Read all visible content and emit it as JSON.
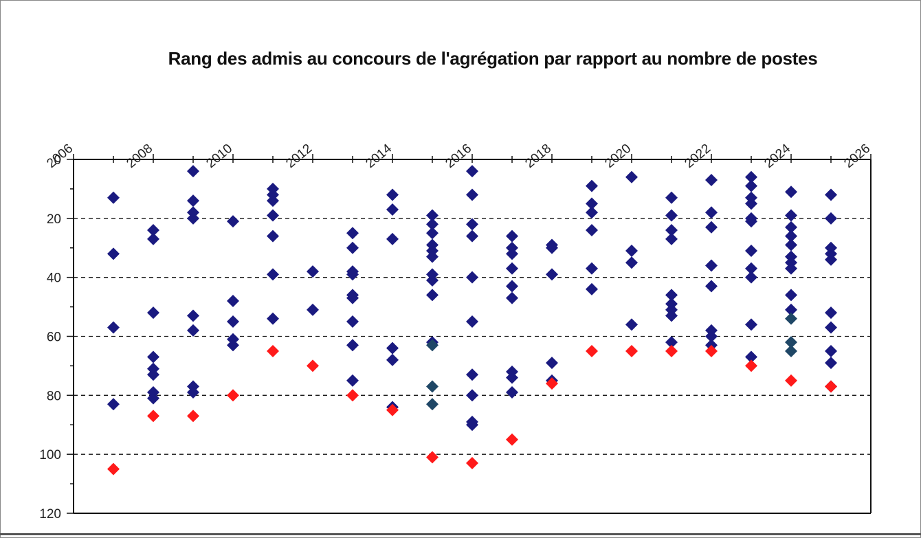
{
  "chart_data": {
    "type": "scatter",
    "title": "Rang des admis au concours de l'agrégation par rapport au nombre de postes",
    "xlabel": "",
    "ylabel": "",
    "xlim": [
      2006,
      2026
    ],
    "ylim": [
      0,
      120
    ],
    "y_inverted": true,
    "x_axis_position": "top",
    "x_ticks": [
      "2006",
      "2008",
      "2010",
      "2012",
      "2014",
      "2016",
      "2018",
      "2020",
      "2022",
      "2024",
      "2026"
    ],
    "y_ticks": [
      "0",
      "20",
      "40",
      "60",
      "80",
      "100",
      "120"
    ],
    "grid": "horizontal dashed",
    "legend": "none",
    "colors": {
      "series1": "#1a1a80",
      "series2": "#ff1a1a",
      "series3": "#1f4766"
    },
    "series": [
      {
        "marker": "diamond",
        "color": "#1a1a80",
        "points": [
          [
            2007,
            13
          ],
          [
            2007,
            32
          ],
          [
            2007,
            57
          ],
          [
            2007,
            83
          ],
          [
            2008,
            24
          ],
          [
            2008,
            27
          ],
          [
            2008,
            52
          ],
          [
            2008,
            67
          ],
          [
            2008,
            71
          ],
          [
            2008,
            73
          ],
          [
            2008,
            79
          ],
          [
            2008,
            81
          ],
          [
            2009,
            4
          ],
          [
            2009,
            14
          ],
          [
            2009,
            18
          ],
          [
            2009,
            20
          ],
          [
            2009,
            53
          ],
          [
            2009,
            58
          ],
          [
            2009,
            77
          ],
          [
            2009,
            79
          ],
          [
            2010,
            21
          ],
          [
            2010,
            48
          ],
          [
            2010,
            55
          ],
          [
            2010,
            61
          ],
          [
            2010,
            63
          ],
          [
            2011,
            10
          ],
          [
            2011,
            12
          ],
          [
            2011,
            14
          ],
          [
            2011,
            19
          ],
          [
            2011,
            26
          ],
          [
            2011,
            39
          ],
          [
            2011,
            54
          ],
          [
            2012,
            38
          ],
          [
            2012,
            51
          ],
          [
            2013,
            25
          ],
          [
            2013,
            30
          ],
          [
            2013,
            38
          ],
          [
            2013,
            39
          ],
          [
            2013,
            46
          ],
          [
            2013,
            47
          ],
          [
            2013,
            55
          ],
          [
            2013,
            63
          ],
          [
            2013,
            75
          ],
          [
            2014,
            12
          ],
          [
            2014,
            17
          ],
          [
            2014,
            27
          ],
          [
            2014,
            64
          ],
          [
            2014,
            68
          ],
          [
            2014,
            84
          ],
          [
            2015,
            19
          ],
          [
            2015,
            22
          ],
          [
            2015,
            25
          ],
          [
            2015,
            29
          ],
          [
            2015,
            31
          ],
          [
            2015,
            33
          ],
          [
            2015,
            39
          ],
          [
            2015,
            41
          ],
          [
            2015,
            46
          ],
          [
            2015,
            62
          ],
          [
            2016,
            4
          ],
          [
            2016,
            12
          ],
          [
            2016,
            22
          ],
          [
            2016,
            26
          ],
          [
            2016,
            40
          ],
          [
            2016,
            55
          ],
          [
            2016,
            73
          ],
          [
            2016,
            80
          ],
          [
            2016,
            89
          ],
          [
            2016,
            90
          ],
          [
            2017,
            26
          ],
          [
            2017,
            30
          ],
          [
            2017,
            32
          ],
          [
            2017,
            37
          ],
          [
            2017,
            43
          ],
          [
            2017,
            47
          ],
          [
            2017,
            72
          ],
          [
            2017,
            74
          ],
          [
            2017,
            79
          ],
          [
            2018,
            29
          ],
          [
            2018,
            30
          ],
          [
            2018,
            39
          ],
          [
            2018,
            69
          ],
          [
            2018,
            75
          ],
          [
            2019,
            9
          ],
          [
            2019,
            15
          ],
          [
            2019,
            18
          ],
          [
            2019,
            24
          ],
          [
            2019,
            37
          ],
          [
            2019,
            44
          ],
          [
            2020,
            6
          ],
          [
            2020,
            31
          ],
          [
            2020,
            35
          ],
          [
            2020,
            56
          ],
          [
            2021,
            13
          ],
          [
            2021,
            19
          ],
          [
            2021,
            24
          ],
          [
            2021,
            27
          ],
          [
            2021,
            46
          ],
          [
            2021,
            49
          ],
          [
            2021,
            51
          ],
          [
            2021,
            53
          ],
          [
            2021,
            62
          ],
          [
            2022,
            7
          ],
          [
            2022,
            18
          ],
          [
            2022,
            23
          ],
          [
            2022,
            36
          ],
          [
            2022,
            43
          ],
          [
            2022,
            58
          ],
          [
            2022,
            60
          ],
          [
            2022,
            63
          ],
          [
            2023,
            6
          ],
          [
            2023,
            9
          ],
          [
            2023,
            13
          ],
          [
            2023,
            15
          ],
          [
            2023,
            20
          ],
          [
            2023,
            21
          ],
          [
            2023,
            31
          ],
          [
            2023,
            37
          ],
          [
            2023,
            40
          ],
          [
            2023,
            56
          ],
          [
            2023,
            67
          ],
          [
            2024,
            11
          ],
          [
            2024,
            19
          ],
          [
            2024,
            23
          ],
          [
            2024,
            26
          ],
          [
            2024,
            29
          ],
          [
            2024,
            33
          ],
          [
            2024,
            35
          ],
          [
            2024,
            37
          ],
          [
            2024,
            46
          ],
          [
            2024,
            51
          ],
          [
            2025,
            12
          ],
          [
            2025,
            20
          ],
          [
            2025,
            30
          ],
          [
            2025,
            32
          ],
          [
            2025,
            34
          ],
          [
            2025,
            52
          ],
          [
            2025,
            57
          ],
          [
            2025,
            65
          ],
          [
            2025,
            69
          ],
          [
            2025,
            77
          ]
        ]
      },
      {
        "marker": "diamond",
        "color": "#ff1a1a",
        "points": [
          [
            2007,
            105
          ],
          [
            2008,
            87
          ],
          [
            2009,
            87
          ],
          [
            2010,
            80
          ],
          [
            2011,
            65
          ],
          [
            2012,
            70
          ],
          [
            2013,
            80
          ],
          [
            2014,
            85
          ],
          [
            2015,
            101
          ],
          [
            2016,
            103
          ],
          [
            2017,
            95
          ],
          [
            2018,
            76
          ],
          [
            2019,
            65
          ],
          [
            2020,
            65
          ],
          [
            2021,
            65
          ],
          [
            2022,
            65
          ],
          [
            2023,
            70
          ],
          [
            2024,
            75
          ],
          [
            2025,
            77
          ]
        ]
      },
      {
        "marker": "diamond",
        "color": "#1f4766",
        "points": [
          [
            2015,
            63
          ],
          [
            2015,
            77
          ],
          [
            2015,
            83
          ],
          [
            2024,
            54
          ],
          [
            2024,
            62
          ],
          [
            2024,
            65
          ]
        ]
      }
    ]
  }
}
